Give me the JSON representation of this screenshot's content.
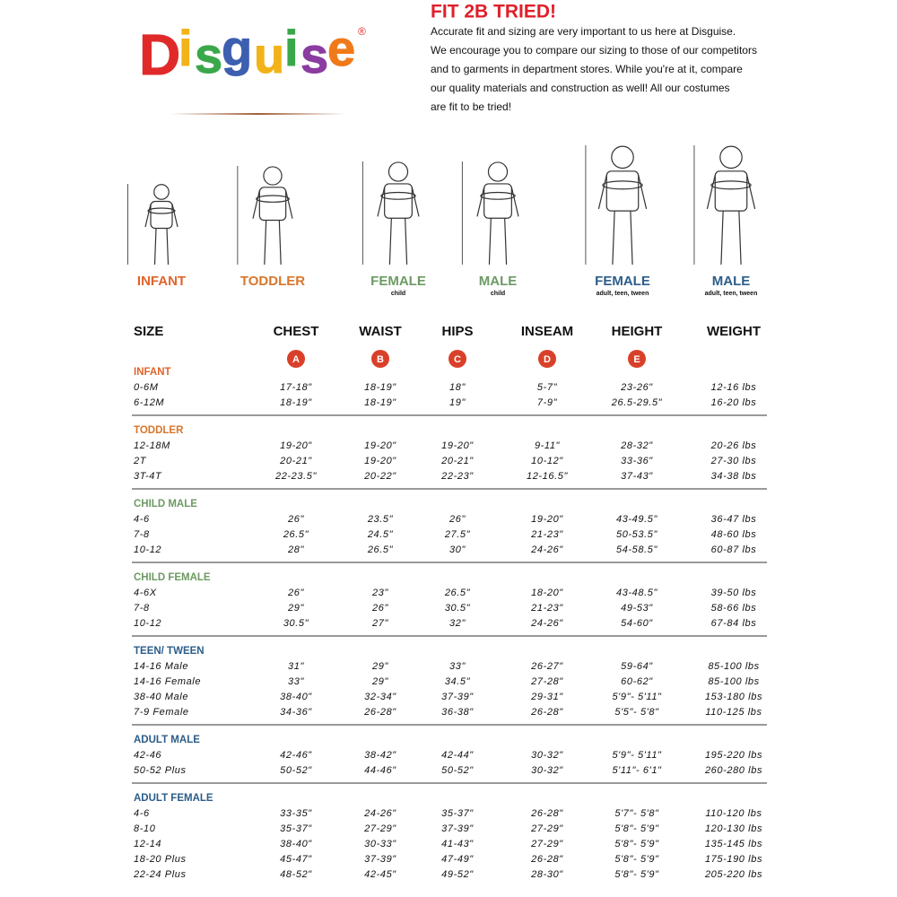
{
  "logo": {
    "letters": [
      "D",
      "i",
      "s",
      "g",
      "u",
      "i",
      "s",
      "e"
    ],
    "colors": [
      "#e02a2a",
      "#f2b318",
      "#3aa84a",
      "#3c5fb0",
      "#f2b318",
      "#3aa84a",
      "#8a3ca0",
      "#f07a1a"
    ],
    "mark": "®"
  },
  "intro": {
    "title": "FIT 2B TRIED!",
    "lines": [
      "Accurate fit and sizing are very important to us here at Disguise.",
      "We encourage you to compare our sizing to those of our competitors",
      "and to garments in department stores. While you're at it, compare",
      "our quality materials and construction as well! All our costumes",
      "are fit to be tried!"
    ]
  },
  "figures": [
    {
      "label": "INFANT",
      "color": "#e0642a"
    },
    {
      "label": "TODDLER",
      "color": "#d9762b"
    },
    {
      "label": "FEMALE",
      "sub": "child",
      "color": "#6d9a63"
    },
    {
      "label": "MALE",
      "sub": "child",
      "color": "#6d9a63"
    },
    {
      "label": "FEMALE",
      "sub": "adult, teen, tween",
      "color": "#2c5d8a"
    },
    {
      "label": "MALE",
      "sub": "adult, teen, tween",
      "color": "#2c5d8a"
    }
  ],
  "table": {
    "headers": [
      "SIZE",
      "CHEST",
      "WAIST",
      "HIPS",
      "INSEAM",
      "HEIGHT",
      "WEIGHT"
    ],
    "badges": [
      "A",
      "B",
      "C",
      "D",
      "E"
    ],
    "groups": [
      {
        "name": "INFANT",
        "color": "#e0642a",
        "rows": [
          [
            "0-6M",
            "17-18\"",
            "18-19\"",
            "18\"",
            "5-7\"",
            "23-26\"",
            "12-16 lbs"
          ],
          [
            "6-12M",
            "18-19\"",
            "18-19\"",
            "19\"",
            "7-9\"",
            "26.5-29.5\"",
            "16-20 lbs"
          ]
        ]
      },
      {
        "name": "TODDLER",
        "color": "#d9762b",
        "rows": [
          [
            "12-18M",
            "19-20\"",
            "19-20\"",
            "19-20\"",
            "9-11\"",
            "28-32\"",
            "20-26 lbs"
          ],
          [
            "2T",
            "20-21\"",
            "19-20\"",
            "20-21\"",
            "10-12\"",
            "33-36\"",
            "27-30 lbs"
          ],
          [
            "3T-4T",
            "22-23.5\"",
            "20-22\"",
            "22-23\"",
            "12-16.5\"",
            "37-43\"",
            "34-38 lbs"
          ]
        ]
      },
      {
        "name": "CHILD MALE",
        "color": "#6d9a63",
        "rows": [
          [
            "4-6",
            "26\"",
            "23.5\"",
            "26\"",
            "19-20\"",
            "43-49.5\"",
            "36-47 lbs"
          ],
          [
            "7-8",
            "26.5\"",
            "24.5\"",
            "27.5\"",
            "21-23\"",
            "50-53.5\"",
            "48-60 lbs"
          ],
          [
            "10-12",
            "28\"",
            "26.5\"",
            "30\"",
            "24-26\"",
            "54-58.5\"",
            "60-87 lbs"
          ]
        ]
      },
      {
        "name": "CHILD FEMALE",
        "color": "#6d9a63",
        "rows": [
          [
            "4-6X",
            "26\"",
            "23\"",
            "26.5\"",
            "18-20\"",
            "43-48.5\"",
            "39-50 lbs"
          ],
          [
            "7-8",
            "29\"",
            "26\"",
            "30.5\"",
            "21-23\"",
            "49-53\"",
            "58-66 lbs"
          ],
          [
            "10-12",
            "30.5\"",
            "27\"",
            "32\"",
            "24-26\"",
            "54-60\"",
            "67-84 lbs"
          ]
        ]
      },
      {
        "name": "TEEN/ TWEEN",
        "color": "#2c5d8a",
        "rows": [
          [
            "14-16 Male",
            "31\"",
            "29\"",
            "33\"",
            "26-27\"",
            "59-64\"",
            "85-100 lbs"
          ],
          [
            "14-16 Female",
            "33\"",
            "29\"",
            "34.5\"",
            "27-28\"",
            "60-62\"",
            "85-100 lbs"
          ],
          [
            "38-40 Male",
            "38-40\"",
            "32-34\"",
            "37-39\"",
            "29-31\"",
            "5'9\"- 5'11\"",
            "153-180 lbs"
          ],
          [
            "7-9 Female",
            "34-36\"",
            "26-28\"",
            "36-38\"",
            "26-28\"",
            "5'5\"- 5'8\"",
            "110-125 lbs"
          ]
        ]
      },
      {
        "name": "ADULT MALE",
        "color": "#2c5d8a",
        "rows": [
          [
            "42-46",
            "42-46\"",
            "38-42\"",
            "42-44\"",
            "30-32\"",
            "5'9\"- 5'11\"",
            "195-220 lbs"
          ],
          [
            "50-52 Plus",
            "50-52\"",
            "44-46\"",
            "50-52\"",
            "30-32\"",
            "5'11\"- 6'1\"",
            "260-280 lbs"
          ]
        ]
      },
      {
        "name": "ADULT FEMALE",
        "color": "#2c5d8a",
        "rows": [
          [
            "4-6",
            "33-35\"",
            "24-26\"",
            "35-37\"",
            "26-28\"",
            "5'7\"- 5'8\"",
            "110-120 lbs"
          ],
          [
            "8-10",
            "35-37\"",
            "27-29\"",
            "37-39\"",
            "27-29\"",
            "5'8\"- 5'9\"",
            "120-130 lbs"
          ],
          [
            "12-14",
            "38-40\"",
            "30-33\"",
            "41-43\"",
            "27-29\"",
            "5'8\"- 5'9\"",
            "135-145 lbs"
          ],
          [
            "18-20 Plus",
            "45-47\"",
            "37-39\"",
            "47-49\"",
            "26-28\"",
            "5'8\"- 5'9\"",
            "175-190 lbs"
          ],
          [
            "22-24 Plus",
            "48-52\"",
            "42-45\"",
            "49-52\"",
            "28-30\"",
            "5'8\"- 5'9\"",
            "205-220 lbs"
          ]
        ]
      }
    ]
  }
}
